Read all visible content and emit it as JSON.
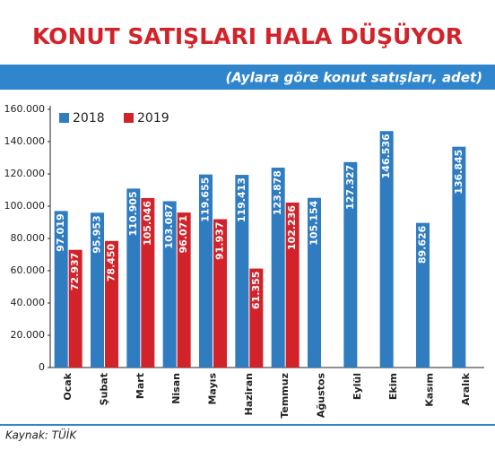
{
  "chart_data": {
    "type": "bar",
    "title": "KONUT SATIŞLARI HALA DÜŞÜYOR",
    "subtitle": "(Aylara göre konut satışları, adet)",
    "source": "Kaynak: TÜİK",
    "categories": [
      "Ocak",
      "Şubat",
      "Mart",
      "Nisan",
      "Mayıs",
      "Haziran",
      "Temmuz",
      "Ağustos",
      "Eylül",
      "Ekim",
      "Kasım",
      "Aralık"
    ],
    "series": [
      {
        "name": "2018",
        "color": "#2f7cc0",
        "values": [
          97019,
          95953,
          110905,
          103087,
          119655,
          119413,
          123878,
          105154,
          127327,
          146536,
          89626,
          136845
        ],
        "value_labels": [
          "97.019",
          "95.953",
          "110.905",
          "103.087",
          "119.655",
          "119.413",
          "123.878",
          "105.154",
          "127.327",
          "146.536",
          "89.626",
          "136.845"
        ]
      },
      {
        "name": "2019",
        "color": "#d2232a",
        "values": [
          72937,
          78450,
          105046,
          96071,
          91937,
          61355,
          102236,
          null,
          null,
          null,
          null,
          null
        ],
        "value_labels": [
          "72.937",
          "78.450",
          "105.046",
          "96.071",
          "91.937",
          "61.355",
          "102.236",
          null,
          null,
          null,
          null,
          null
        ]
      }
    ],
    "ylim": [
      0,
      160000
    ],
    "yticks": [
      0,
      {
        "value": 20000,
        "label": "20.000"
      },
      {
        "value": 40000,
        "label": "40.000"
      },
      {
        "value": 60000,
        "label": "60.000"
      },
      {
        "value": 80000,
        "label": "80.000"
      },
      {
        "value": 100000,
        "label": "100.000"
      },
      {
        "value": 120000,
        "label": "120.000"
      },
      {
        "value": 140000,
        "label": "140.000"
      },
      {
        "value": 160000,
        "label": "160.000"
      }
    ],
    "legend": "top-left"
  }
}
